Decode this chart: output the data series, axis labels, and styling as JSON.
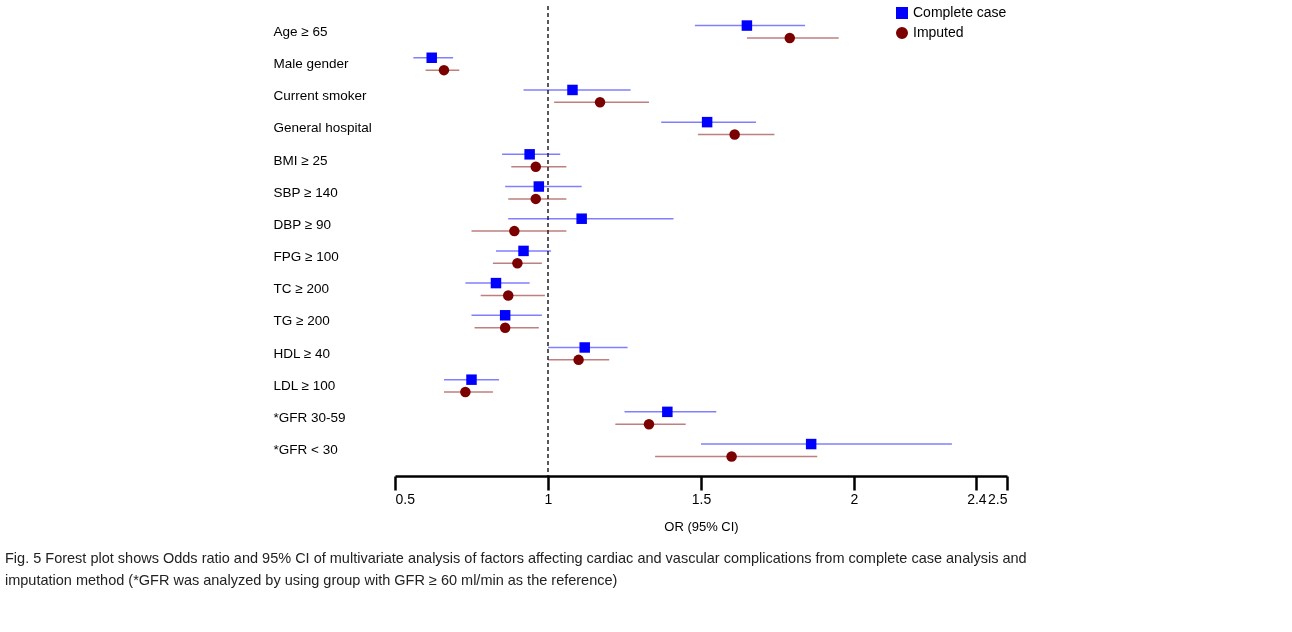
{
  "chart_data": {
    "type": "scatter",
    "orientation": "horizontal",
    "xlabel": "OR (95% CI)",
    "categories": [
      "Age ≥ 65",
      "Male gender",
      "Current smoker",
      "General hospital",
      "BMI ≥ 25",
      "SBP ≥ 140",
      "DBP ≥ 90",
      "FPG ≥ 100",
      "TC ≥ 200",
      "TG ≥ 200",
      "HDL ≥ 40",
      "LDL ≥ 100",
      "*GFR 30-59",
      "*GFR < 30"
    ],
    "series": [
      {
        "name": "Complete case",
        "color": "#0000ff",
        "marker": "square",
        "values": [
          1.65,
          0.62,
          1.08,
          1.52,
          0.94,
          0.97,
          1.11,
          0.92,
          0.83,
          0.86,
          1.12,
          0.75,
          1.39,
          1.86
        ],
        "errors": [
          [
            1.48,
            1.84
          ],
          [
            0.56,
            0.69
          ],
          [
            0.92,
            1.27
          ],
          [
            1.37,
            1.68
          ],
          [
            0.85,
            1.04
          ],
          [
            0.86,
            1.11
          ],
          [
            0.87,
            1.41
          ],
          [
            0.83,
            1.01
          ],
          [
            0.73,
            0.94
          ],
          [
            0.75,
            0.98
          ],
          [
            1.0,
            1.26
          ],
          [
            0.66,
            0.84
          ],
          [
            1.25,
            1.55
          ],
          [
            1.5,
            2.32
          ]
        ]
      },
      {
        "name": "Imputed",
        "color": "#7b0000",
        "marker": "circle",
        "values": [
          1.79,
          0.66,
          1.17,
          1.61,
          0.96,
          0.96,
          0.89,
          0.9,
          0.87,
          0.86,
          1.1,
          0.73,
          1.33,
          1.6
        ],
        "errors": [
          [
            1.65,
            1.95
          ],
          [
            0.6,
            0.71
          ],
          [
            1.02,
            1.33
          ],
          [
            1.49,
            1.74
          ],
          [
            0.88,
            1.06
          ],
          [
            0.87,
            1.06
          ],
          [
            0.75,
            1.06
          ],
          [
            0.82,
            0.98
          ],
          [
            0.78,
            0.99
          ],
          [
            0.76,
            0.97
          ],
          [
            1.0,
            1.2
          ],
          [
            0.66,
            0.82
          ],
          [
            1.22,
            1.45
          ],
          [
            1.35,
            1.88
          ]
        ]
      }
    ],
    "xlim": [
      0.5,
      2.5
    ],
    "xticks": [
      0.5,
      1,
      1.5,
      2,
      2.4,
      2.5
    ],
    "ref_lines": [
      {
        "axis": "x",
        "value": 1,
        "line_style": "dashed"
      }
    ],
    "legend": "top right",
    "grid": false,
    "annotations": [
      "Fig. 5 Forest plot shows Odds ratio and 95% CI of multivariate analysis of factors affecting cardiac and vascular complications from complete case analysis and imputation method (*GFR was analyzed by using group with GFR ≥ 60 ml/min as the reference)"
    ]
  }
}
